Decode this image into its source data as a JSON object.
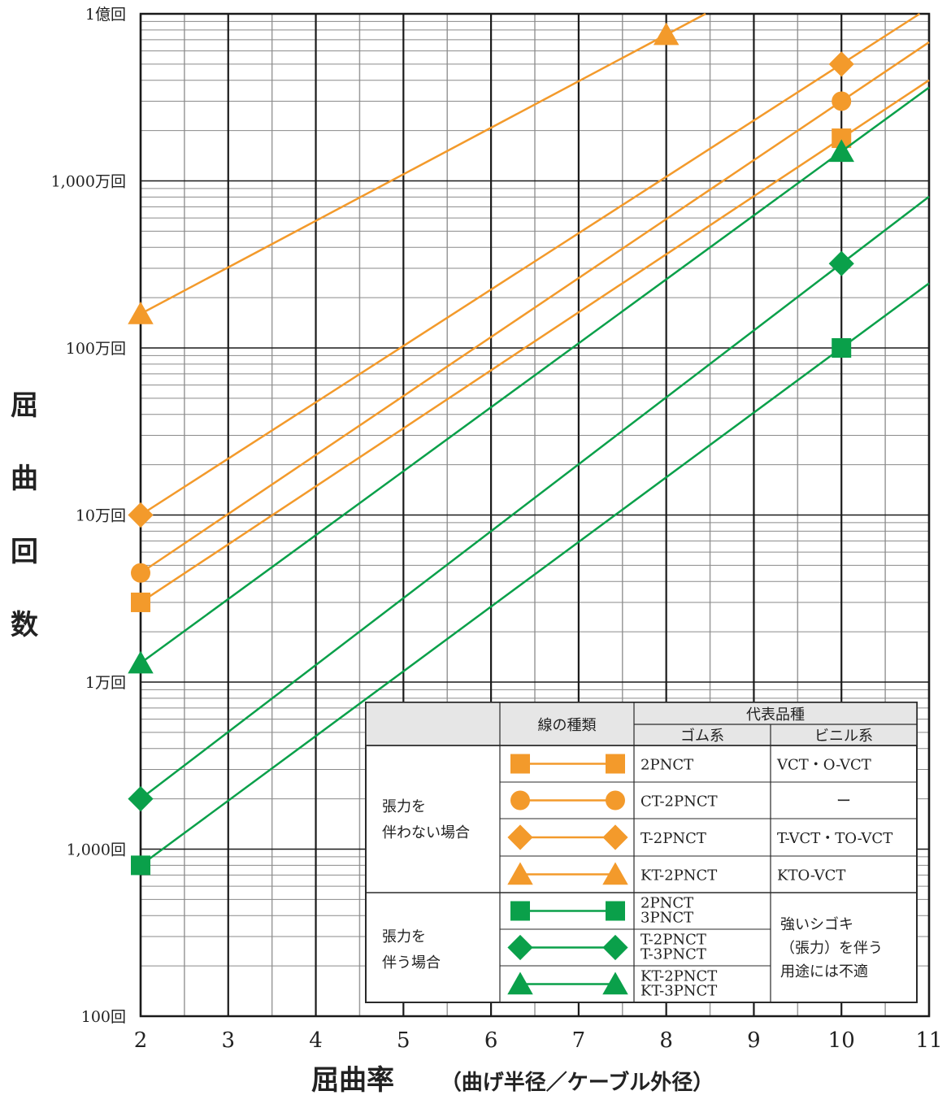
{
  "chart_data": {
    "type": "line",
    "xlabel": "屈曲率",
    "xlabel_note": "（曲げ半径／ケーブル外径）",
    "ylabel": "屈曲回数",
    "x_ticks": [
      "2",
      "3",
      "4",
      "5",
      "6",
      "7",
      "8",
      "9",
      "10",
      "11"
    ],
    "xlim": [
      2,
      11
    ],
    "y_scale": "log",
    "ylim": [
      100,
      100000000
    ],
    "y_ticks": [
      {
        "value": 100,
        "label": "100回"
      },
      {
        "value": 1000,
        "label": "1,000回"
      },
      {
        "value": 10000,
        "label": "1万回"
      },
      {
        "value": 100000,
        "label": "10万回"
      },
      {
        "value": 1000000,
        "label": "100万回"
      },
      {
        "value": 10000000,
        "label": "1,000万回"
      },
      {
        "value": 100000000,
        "label": "1億回"
      }
    ],
    "series": [
      {
        "name": "2PNCT",
        "group": "張力を伴わない場合",
        "color": "#f39a2b",
        "marker": "square",
        "points": [
          [
            2,
            30000
          ],
          [
            10,
            18000000
          ]
        ]
      },
      {
        "name": "CT-2PNCT",
        "group": "張力を伴わない場合",
        "color": "#f39a2b",
        "marker": "circle",
        "points": [
          [
            2,
            45000
          ],
          [
            10,
            30000000
          ]
        ]
      },
      {
        "name": "T-2PNCT",
        "group": "張力を伴わない場合",
        "color": "#f39a2b",
        "marker": "diamond",
        "points": [
          [
            2,
            100000
          ],
          [
            10,
            50000000
          ]
        ]
      },
      {
        "name": "KT-2PNCT",
        "group": "張力を伴わない場合",
        "color": "#f39a2b",
        "marker": "triangle",
        "points": [
          [
            2,
            1600000
          ],
          [
            8,
            75000000
          ]
        ]
      },
      {
        "name": "2PNCT 3PNCT",
        "group": "張力を伴う場合",
        "color": "#0aa04a",
        "marker": "square",
        "points": [
          [
            2,
            800
          ],
          [
            10,
            1000000
          ]
        ]
      },
      {
        "name": "T-2PNCT T-3PNCT",
        "group": "張力を伴う場合",
        "color": "#0aa04a",
        "marker": "diamond",
        "points": [
          [
            2,
            2000
          ],
          [
            10,
            3200000
          ]
        ]
      },
      {
        "name": "KT-2PNCT KT-3PNCT",
        "group": "張力を伴う場合",
        "color": "#0aa04a",
        "marker": "triangle",
        "points": [
          [
            2,
            13000
          ],
          [
            10,
            15000000
          ]
        ]
      }
    ]
  },
  "legend": {
    "header_line_type": "線の種類",
    "header_products": "代表品種",
    "header_rubber": "ゴム系",
    "header_vinyl": "ビニル系",
    "group1_line1": "張力を",
    "group1_line2": "伴わない場合",
    "group2_line1": "張力を",
    "group2_line2": "伴う場合",
    "rows": [
      {
        "marker": "square",
        "color": "#f39a2b",
        "rubber": [
          "2PNCT"
        ],
        "vinyl": "VCT・O-VCT"
      },
      {
        "marker": "circle",
        "color": "#f39a2b",
        "rubber": [
          "CT-2PNCT"
        ],
        "vinyl": "ー"
      },
      {
        "marker": "diamond",
        "color": "#f39a2b",
        "rubber": [
          "T-2PNCT"
        ],
        "vinyl": "T-VCT・TO-VCT"
      },
      {
        "marker": "triangle",
        "color": "#f39a2b",
        "rubber": [
          "KT-2PNCT"
        ],
        "vinyl": "KTO-VCT"
      },
      {
        "marker": "square",
        "color": "#0aa04a",
        "rubber": [
          "2PNCT",
          "3PNCT"
        ]
      },
      {
        "marker": "diamond",
        "color": "#0aa04a",
        "rubber": [
          "T-2PNCT",
          "T-3PNCT"
        ]
      },
      {
        "marker": "triangle",
        "color": "#0aa04a",
        "rubber": [
          "KT-2PNCT",
          "KT-3PNCT"
        ]
      }
    ],
    "tension_note": [
      "強いシゴキ",
      "（張力）を伴う",
      "用途には不適"
    ]
  }
}
